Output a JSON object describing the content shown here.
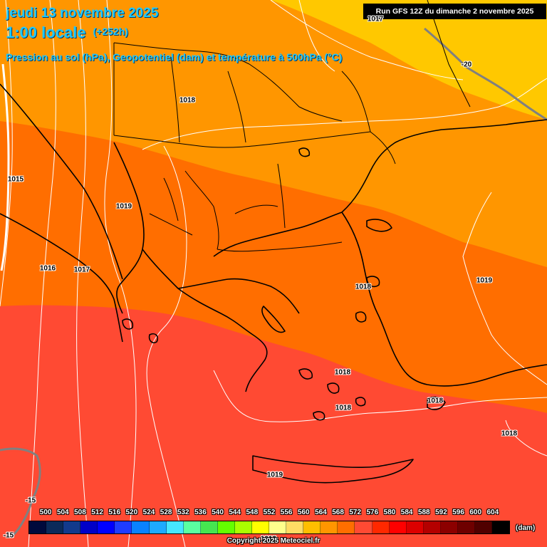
{
  "header": {
    "date": "jeudi 13 novembre 2025",
    "time": "1:00 locale",
    "lead": "(+252h)",
    "subtitle": "Pression au sol (hPa), Geopotentiel (dam) et température à 500hPa (°C)",
    "run": "Run GFS 12Z du dimanche 2 novembre 2025"
  },
  "zone_colors": {
    "yellow": "#ffc800",
    "orange_light": "#ff9600",
    "orange": "#ff6e00",
    "red_orange": "#ff4a33"
  },
  "isobar_labels": [
    "1017",
    "1018",
    "1015",
    "1019",
    "1016",
    "1017",
    "1018",
    "1019",
    "1018",
    "1018",
    "1018",
    "1018",
    "1019",
    "1013"
  ],
  "temperature_labels": [
    "-20",
    "-15",
    "-15"
  ],
  "legend": {
    "ticks": [
      "500",
      "504",
      "508",
      "512",
      "516",
      "520",
      "524",
      "528",
      "532",
      "536",
      "540",
      "544",
      "548",
      "552",
      "556",
      "560",
      "564",
      "568",
      "572",
      "576",
      "580",
      "584",
      "588",
      "592",
      "596",
      "600",
      "604"
    ],
    "colors": [
      "#000a3c",
      "#0a2a5a",
      "#123a8c",
      "#0000c8",
      "#0000ff",
      "#1e3cff",
      "#0a82ff",
      "#1eaaff",
      "#46e6ff",
      "#5affa0",
      "#46e650",
      "#64ff00",
      "#aaff00",
      "#ffff00",
      "#ffff8c",
      "#ffdc64",
      "#ffbe00",
      "#ff9600",
      "#ff6e00",
      "#ff4a33",
      "#ff2800",
      "#ff0000",
      "#dc0000",
      "#b40000",
      "#8c0000",
      "#6e0000",
      "#500000",
      "#000000"
    ],
    "unit": "(dam)"
  },
  "copyright": "Copyright 2025 Meteociel.fr"
}
